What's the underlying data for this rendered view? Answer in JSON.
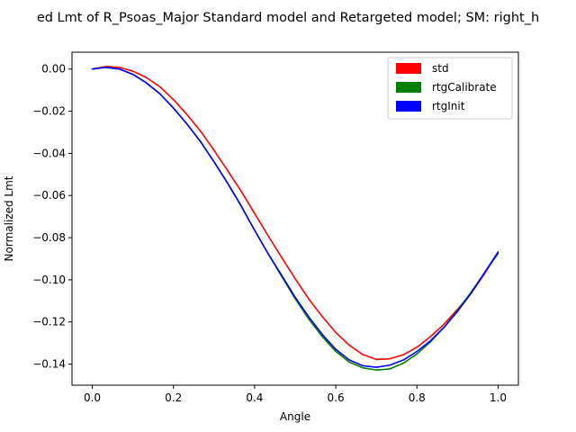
{
  "chart_data": {
    "type": "line",
    "title": "ed Lmt of R_Psoas_Major Standard model and Retargeted model; SM: right_h",
    "xlabel": "Angle",
    "ylabel": "Normalized Lmt",
    "xlim": [
      -0.05,
      1.05
    ],
    "ylim": [
      -0.15,
      0.008
    ],
    "xticks": [
      0.0,
      0.2,
      0.4,
      0.6,
      0.8,
      1.0
    ],
    "xtick_labels": [
      "0.0",
      "0.2",
      "0.4",
      "0.6",
      "0.8",
      "1.0"
    ],
    "yticks": [
      0.0,
      -0.02,
      -0.04,
      -0.06,
      -0.08,
      -0.1,
      -0.12,
      -0.14
    ],
    "ytick_labels": [
      "0.00",
      "−0.02",
      "−0.04",
      "−0.06",
      "−0.08",
      "−0.10",
      "−0.12",
      "−0.14"
    ],
    "grid": false,
    "legend_position": "top-right",
    "x": [
      0.0,
      0.033,
      0.067,
      0.1,
      0.133,
      0.167,
      0.2,
      0.233,
      0.267,
      0.3,
      0.333,
      0.367,
      0.4,
      0.433,
      0.467,
      0.5,
      0.533,
      0.567,
      0.6,
      0.633,
      0.667,
      0.7,
      0.733,
      0.767,
      0.8,
      0.833,
      0.867,
      0.9,
      0.933,
      0.967,
      1.0
    ],
    "series": [
      {
        "name": "std",
        "color": "#ff0000",
        "values": [
          0.0,
          0.0012,
          0.0008,
          -0.001,
          -0.004,
          -0.0085,
          -0.0145,
          -0.0215,
          -0.0295,
          -0.0385,
          -0.048,
          -0.058,
          -0.0685,
          -0.079,
          -0.0895,
          -0.0995,
          -0.109,
          -0.1175,
          -0.125,
          -0.131,
          -0.1355,
          -0.1378,
          -0.1375,
          -0.1355,
          -0.132,
          -0.127,
          -0.121,
          -0.114,
          -0.1065,
          -0.097,
          -0.0868
        ]
      },
      {
        "name": "rtgCalibrate",
        "color": "#008000",
        "values": [
          0.0,
          0.0008,
          0.0,
          -0.0025,
          -0.0065,
          -0.0118,
          -0.0185,
          -0.026,
          -0.0345,
          -0.044,
          -0.054,
          -0.065,
          -0.0765,
          -0.0875,
          -0.0985,
          -0.109,
          -0.1185,
          -0.127,
          -0.134,
          -0.139,
          -0.1418,
          -0.1428,
          -0.1423,
          -0.1395,
          -0.1352,
          -0.1295,
          -0.1225,
          -0.1145,
          -0.106,
          -0.0965,
          -0.0875
        ]
      },
      {
        "name": "rtgInit",
        "color": "#0000ff",
        "values": [
          0.0,
          0.0008,
          0.0,
          -0.0025,
          -0.0065,
          -0.0118,
          -0.0185,
          -0.026,
          -0.0345,
          -0.044,
          -0.054,
          -0.065,
          -0.0765,
          -0.0875,
          -0.098,
          -0.1083,
          -0.1175,
          -0.126,
          -0.133,
          -0.138,
          -0.1408,
          -0.1415,
          -0.1405,
          -0.138,
          -0.134,
          -0.129,
          -0.1225,
          -0.115,
          -0.1065,
          -0.0965,
          -0.0868
        ]
      }
    ]
  }
}
